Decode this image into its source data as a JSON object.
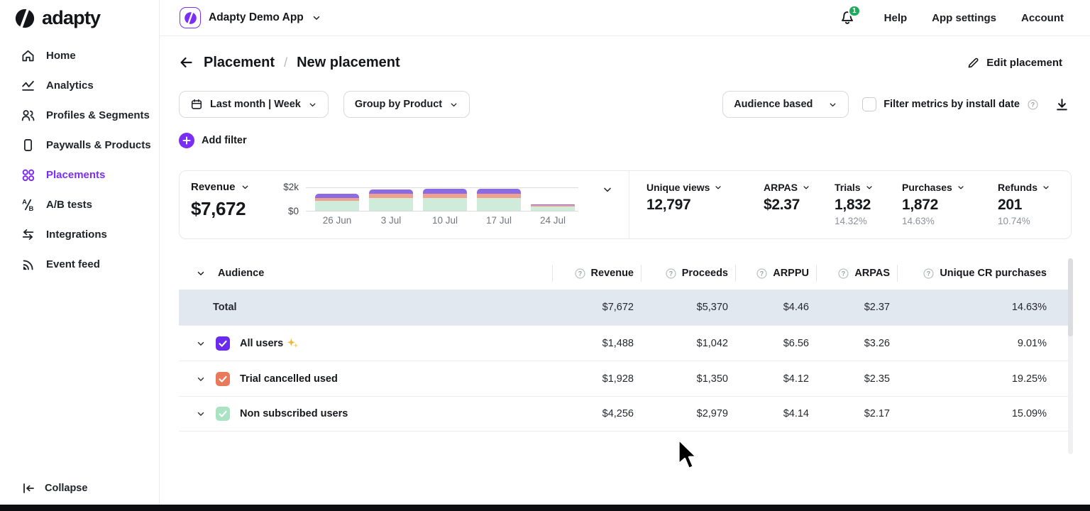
{
  "colors": {
    "accent": "#7b2ff5",
    "badge_green": "#1fab5e",
    "total_row_bg": "#e2e8f0"
  },
  "brand": {
    "logo_text": "adapty"
  },
  "sidebar": {
    "items": [
      {
        "label": "Home"
      },
      {
        "label": "Analytics"
      },
      {
        "label": "Profiles & Segments"
      },
      {
        "label": "Paywalls & Products"
      },
      {
        "label": "Placements"
      },
      {
        "label": "A/B tests"
      },
      {
        "label": "Integrations"
      },
      {
        "label": "Event feed"
      }
    ],
    "active_item": "Placements",
    "collapse_label": "Collapse"
  },
  "topbar": {
    "app_name": "Adapty Demo App",
    "notification_count": "1",
    "links": [
      {
        "label": "Help"
      },
      {
        "label": "App settings"
      },
      {
        "label": "Account"
      }
    ]
  },
  "page": {
    "breadcrumb_parent": "Placement",
    "breadcrumb_sep": "/",
    "breadcrumb_current": "New placement",
    "edit_button": "Edit placement"
  },
  "filters": {
    "date_range": "Last month | Week",
    "group_by": "Group by Product",
    "audience_mode": "Audience based",
    "install_date_label": "Filter metrics by install date",
    "install_date_checked": false,
    "add_filter": "Add filter"
  },
  "summary": {
    "revenue_label": "Revenue",
    "revenue_value": "$7,672",
    "metrics": [
      {
        "label": "Unique views",
        "value": "12,797"
      },
      {
        "label": "ARPAS",
        "value": "$2.37"
      },
      {
        "label": "Trials",
        "value": "1,832",
        "sub": "14.32%"
      },
      {
        "label": "Purchases",
        "value": "1,872",
        "sub": "14.63%"
      },
      {
        "label": "Refunds",
        "value": "201",
        "sub": "10.74%"
      }
    ]
  },
  "chart_data": {
    "type": "bar",
    "stacked": true,
    "title": "Revenue",
    "categories": [
      "26 Jun",
      "3 Jul",
      "10 Jul",
      "17 Jul",
      "24 Jul"
    ],
    "series": [
      {
        "name": "green segment",
        "color": "#cfecdb",
        "values": [
          850,
          1110,
          1110,
          1110,
          370
        ]
      },
      {
        "name": "salmon segment",
        "color": "#efa18f",
        "values": [
          300,
          370,
          410,
          370,
          110
        ]
      },
      {
        "name": "purple segment",
        "color": "#8b6be4",
        "values": [
          370,
          410,
          440,
          440,
          110
        ]
      }
    ],
    "ylim": [
      0,
      2000
    ],
    "ytick_labels": [
      "$0",
      "$2k"
    ],
    "grid": true,
    "legend": false
  },
  "table": {
    "audience_header": "Audience",
    "columns": [
      "Revenue",
      "Proceeds",
      "ARPPU",
      "ARPAS",
      "Unique CR purchases"
    ],
    "total_row": {
      "label": "Total",
      "values": [
        "$7,672",
        "$5,370",
        "$4.46",
        "$2.37",
        "14.63%"
      ]
    },
    "rows": [
      {
        "label": "All users",
        "has_sparkle": true,
        "checkbox_color": "#6b2bee",
        "values": [
          "$1,488",
          "$1,042",
          "$6.56",
          "$3.26",
          "9.01%"
        ]
      },
      {
        "label": "Trial cancelled used",
        "has_sparkle": false,
        "checkbox_color": "#e8795a",
        "values": [
          "$1,928",
          "$1,350",
          "$4.12",
          "$2.35",
          "19.25%"
        ]
      },
      {
        "label": "Non subscribed users",
        "has_sparkle": false,
        "checkbox_color": "#a9e3c1",
        "values": [
          "$4,256",
          "$2,979",
          "$4.14",
          "$2.17",
          "15.09%"
        ]
      }
    ]
  }
}
